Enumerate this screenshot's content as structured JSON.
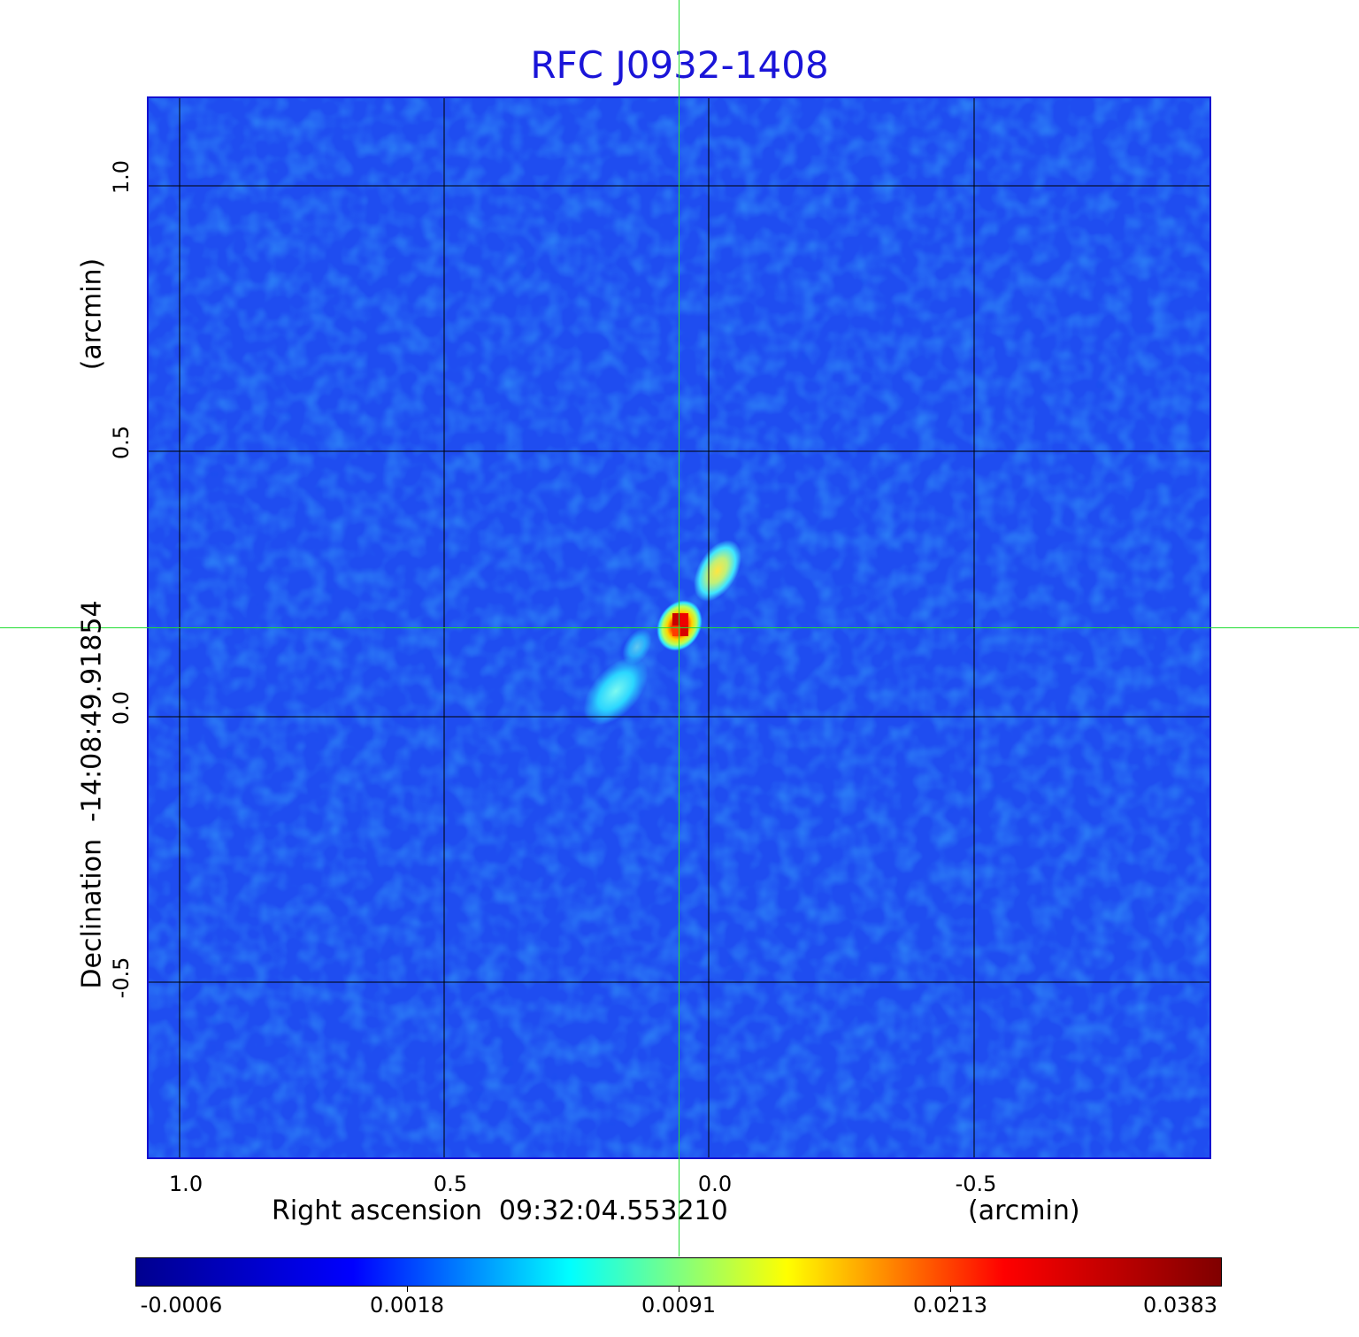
{
  "title": "RFC J0932-1408",
  "x_axis": {
    "label": "Right ascension  09:32:04.553210",
    "unit": "(arcmin)",
    "ticks": [
      "1.0",
      "0.5",
      "0.0",
      "-0.5"
    ]
  },
  "y_axis": {
    "label": "Declination  -14:08:49.91854",
    "unit": "(arcmin)",
    "ticks": [
      "1.0",
      "0.5",
      "0.0",
      "-0.5"
    ]
  },
  "colorbar": {
    "ticks": [
      "-0.0006",
      "0.0018",
      "0.0091",
      "0.0213",
      "0.0383"
    ],
    "colors": [
      "#00008f",
      "#0000ff",
      "#00ffff",
      "#ffff00",
      "#ff0000",
      "#800000"
    ]
  },
  "colors": {
    "background_field": "#1f4df0",
    "title": "#1a14d8",
    "crosshair": "#22dd33",
    "grid": "#000000"
  }
}
